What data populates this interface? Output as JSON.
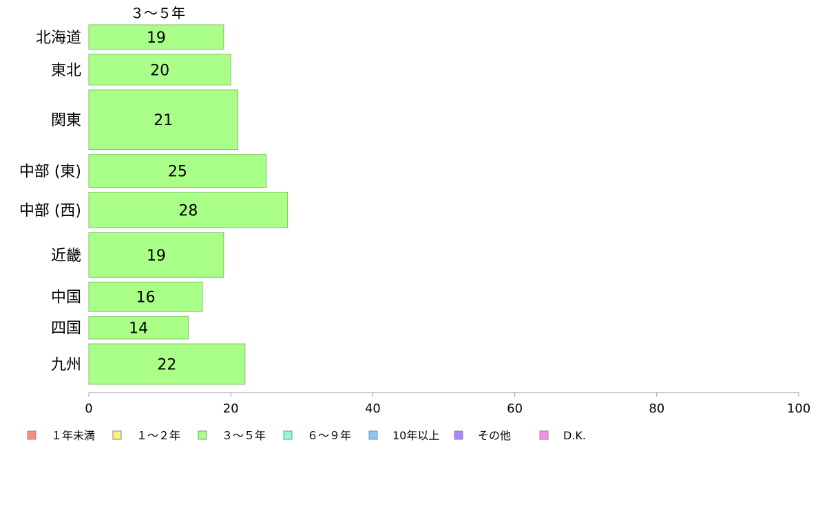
{
  "chart_data": {
    "type": "bar",
    "orientation": "horizontal",
    "title": "３～５年",
    "categories": [
      "北海道",
      "東北",
      "関東",
      "中部 (東)",
      "中部 (西)",
      "近畿",
      "中国",
      "四国",
      "九州"
    ],
    "values": [
      19,
      20,
      21,
      25,
      28,
      19,
      16,
      14,
      22
    ],
    "bar_thickness_weights": [
      36,
      45,
      87,
      48,
      52,
      65,
      43,
      33,
      59
    ],
    "xlim": [
      0,
      100
    ],
    "xticks": [
      "0",
      "20",
      "40",
      "60",
      "80",
      "100"
    ],
    "grid": false,
    "bar_color": "#aaff88",
    "bar_stroke": "#7fbf66",
    "axis_color": "#999999",
    "legend_position": "bottom",
    "legend": [
      {
        "label": "１年未満",
        "color": "#ff8a80"
      },
      {
        "label": "１～２年",
        "color": "#ffee80"
      },
      {
        "label": "３～５年",
        "color": "#aaff88"
      },
      {
        "label": "６～９年",
        "color": "#88ffcc"
      },
      {
        "label": "10年以上",
        "color": "#88c8ff"
      },
      {
        "label": "その他",
        "color": "#aa88ff"
      },
      {
        "label": "D.K.",
        "color": "#ff88ee"
      }
    ]
  }
}
